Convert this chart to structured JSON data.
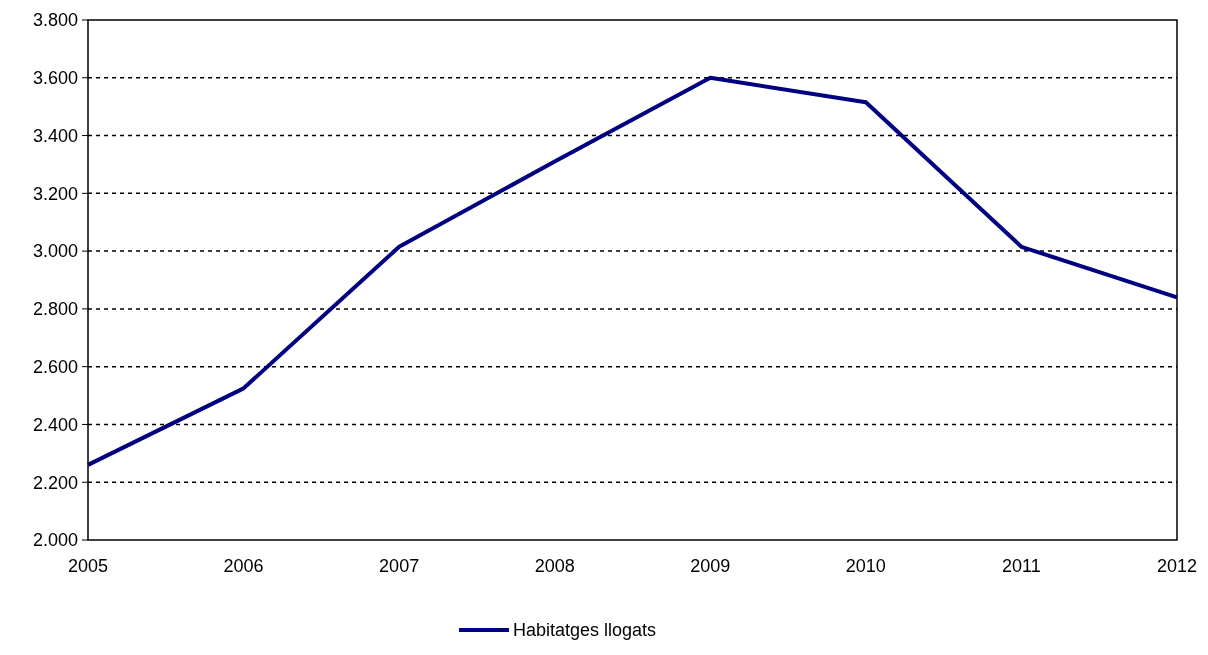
{
  "chart_data": {
    "type": "line",
    "categories": [
      "2005",
      "2006",
      "2007",
      "2008",
      "2009",
      "2010",
      "2011",
      "2012"
    ],
    "series": [
      {
        "name": "Habitatges llogats",
        "color": "#000080",
        "values": [
          2260,
          2525,
          3015,
          3310,
          3600,
          3515,
          3015,
          2840
        ]
      }
    ],
    "ylim": [
      2000,
      3800
    ],
    "yticks": [
      {
        "value": 2000,
        "label": "2.000"
      },
      {
        "value": 2200,
        "label": "2.200"
      },
      {
        "value": 2400,
        "label": "2.400"
      },
      {
        "value": 2600,
        "label": "2.600"
      },
      {
        "value": 2800,
        "label": "2.800"
      },
      {
        "value": 3000,
        "label": "3.000"
      },
      {
        "value": 3200,
        "label": "3.200"
      },
      {
        "value": 3400,
        "label": "3.400"
      },
      {
        "value": 3600,
        "label": "3.600"
      },
      {
        "value": 3800,
        "label": "3.800"
      }
    ],
    "grid": "y",
    "legend": "bottom",
    "line_style": "solid"
  }
}
